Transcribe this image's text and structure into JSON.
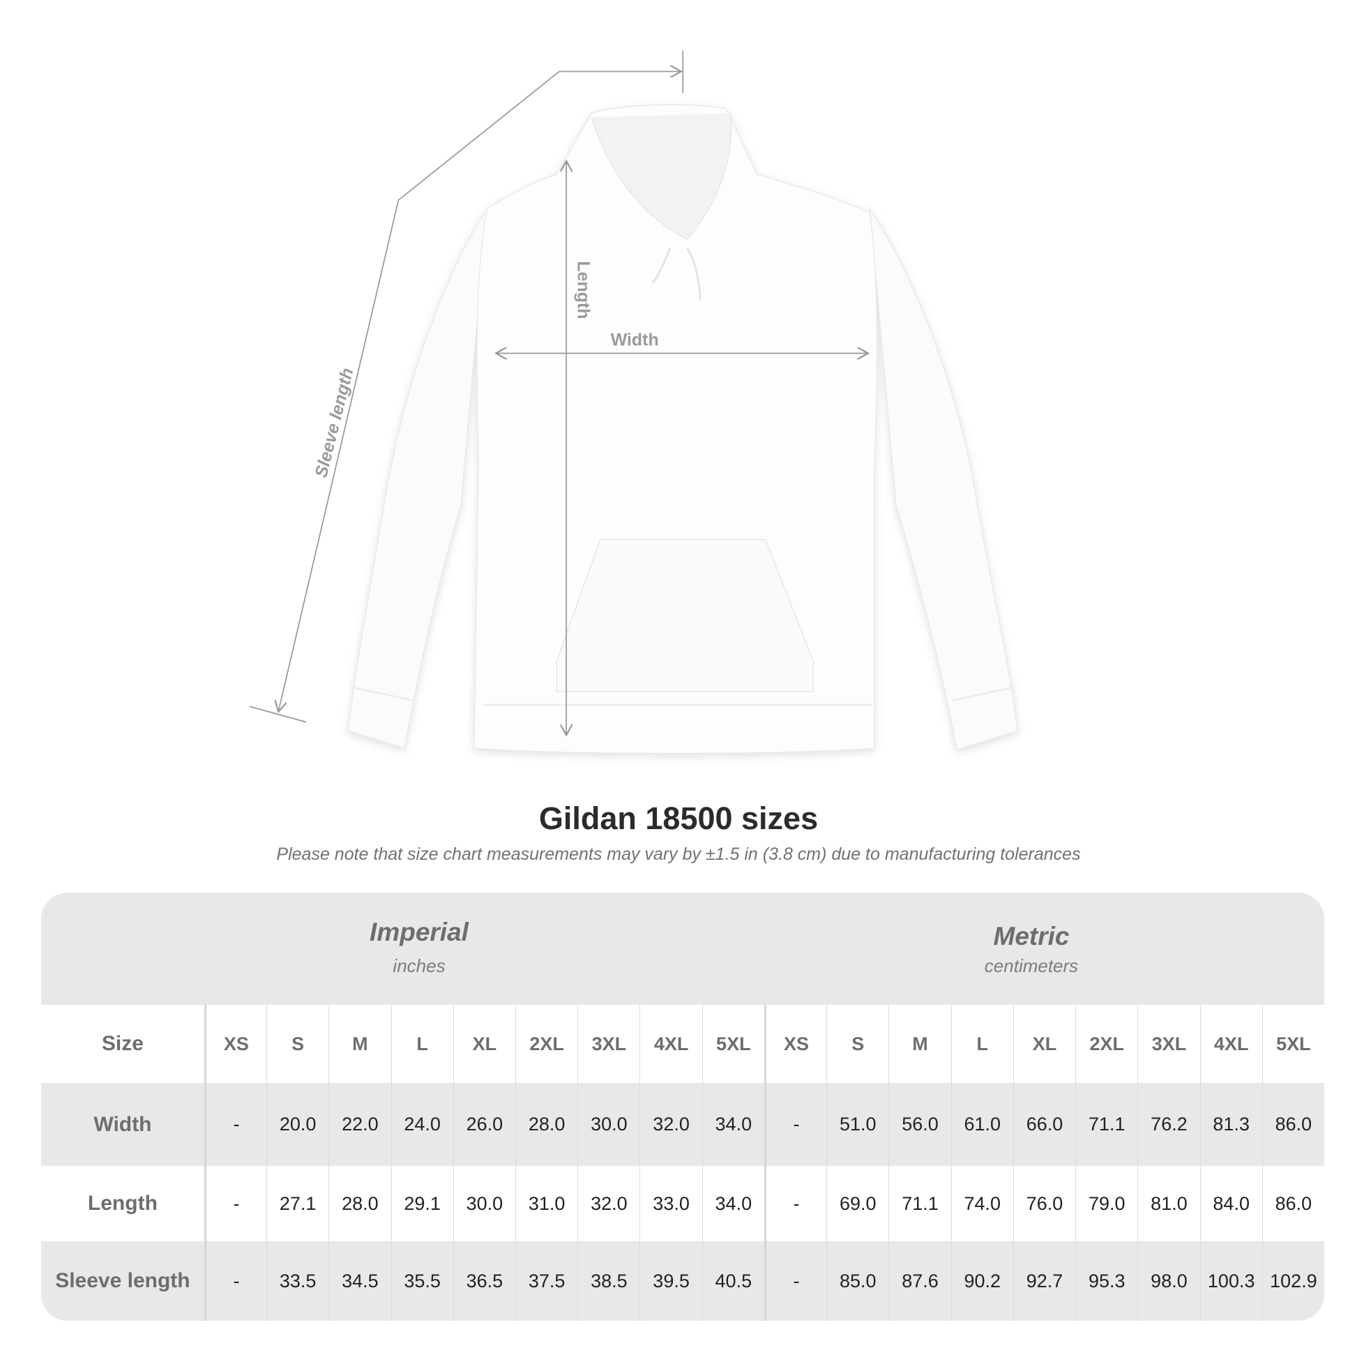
{
  "illustration": {
    "labels": {
      "length": "Length",
      "width": "Width",
      "sleeve_length": "Sleeve length"
    },
    "line_color": "#9a9a9a"
  },
  "title": "Gildan 18500 sizes",
  "subtitle": "Please note that size chart measurements may vary by ±1.5 in (3.8 cm) due to manufacturing tolerances",
  "table": {
    "imperial": {
      "title": "Imperial",
      "unit": "inches"
    },
    "metric": {
      "title": "Metric",
      "unit": "centimeters"
    },
    "size_label": "Size",
    "sizes": [
      "XS",
      "S",
      "M",
      "L",
      "XL",
      "2XL",
      "3XL",
      "4XL",
      "5XL"
    ],
    "rows": [
      {
        "label": "Width",
        "imperial": [
          "-",
          "20.0",
          "22.0",
          "24.0",
          "26.0",
          "28.0",
          "30.0",
          "32.0",
          "34.0"
        ],
        "metric": [
          "-",
          "51.0",
          "56.0",
          "61.0",
          "66.0",
          "71.1",
          "76.2",
          "81.3",
          "86.0"
        ]
      },
      {
        "label": "Length",
        "imperial": [
          "-",
          "27.1",
          "28.0",
          "29.1",
          "30.0",
          "31.0",
          "32.0",
          "33.0",
          "34.0"
        ],
        "metric": [
          "-",
          "69.0",
          "71.1",
          "74.0",
          "76.0",
          "79.0",
          "81.0",
          "84.0",
          "86.0"
        ]
      },
      {
        "label": "Sleeve length",
        "imperial": [
          "-",
          "33.5",
          "34.5",
          "35.5",
          "36.5",
          "37.5",
          "38.5",
          "39.5",
          "40.5"
        ],
        "metric": [
          "-",
          "85.0",
          "87.6",
          "90.2",
          "92.7",
          "95.3",
          "98.0",
          "100.3",
          "102.9"
        ]
      }
    ]
  }
}
